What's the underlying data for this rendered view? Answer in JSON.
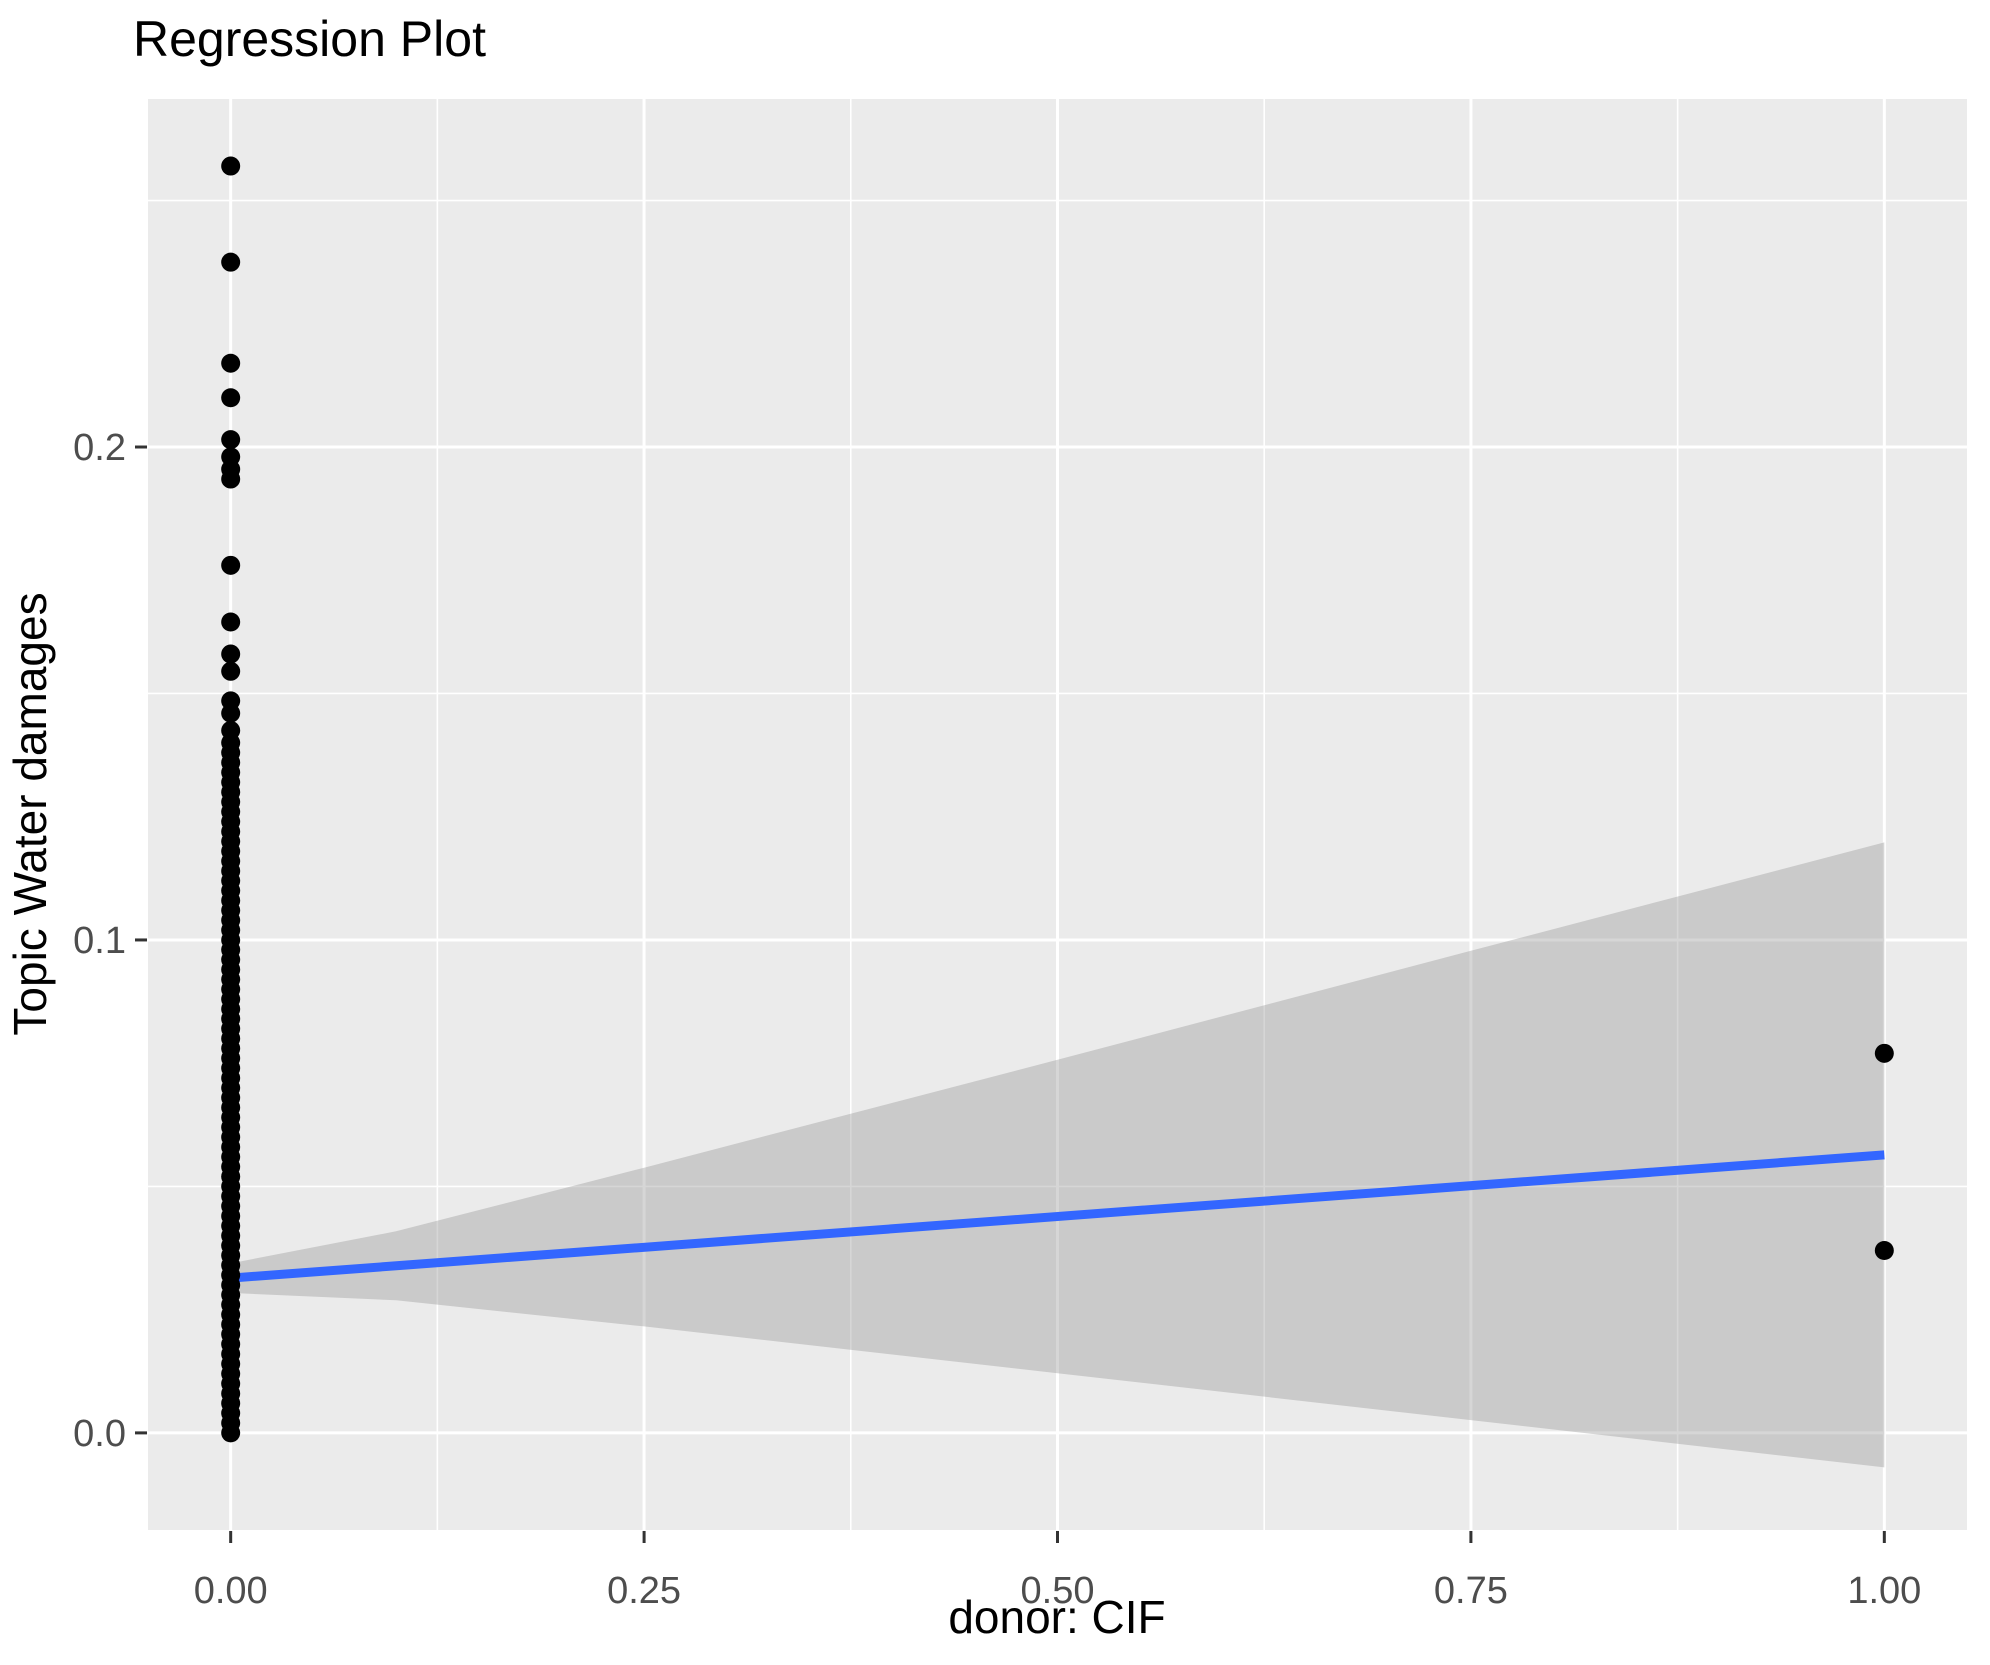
{
  "chart_data": {
    "type": "scatter",
    "title": "Regression Plot",
    "xlabel": "donor: CIF",
    "ylabel": "Topic Water damages",
    "xlim": [
      -0.05,
      1.05
    ],
    "ylim": [
      -0.0197,
      0.2706
    ],
    "grid": "major and minor white gridlines on grey panel",
    "legend": "none",
    "x_axis": {
      "tick_values": [
        0,
        0.25,
        0.5,
        0.75,
        1.0
      ],
      "tick_labels": [
        "0.00",
        "0.25",
        "0.50",
        "0.75",
        "1.00"
      ],
      "minor_tick_values": [
        0.125,
        0.375,
        0.625,
        0.875
      ]
    },
    "y_axis": {
      "tick_values": [
        0,
        0.1,
        0.2
      ],
      "tick_labels": [
        "0.0",
        "0.1",
        "0.2"
      ],
      "minor_tick_values": [
        0.05,
        0.15,
        0.25
      ]
    },
    "scatter_groups": [
      {
        "x": 0,
        "y_values": [
          0.257,
          0.2375,
          0.217,
          0.21,
          0.2015,
          0.198,
          0.1955,
          0.1935,
          0.176,
          0.1645,
          0.158,
          0.1545,
          0.1485,
          0.146,
          0.1425,
          0.14,
          0.138,
          0.136,
          0.134,
          0.132,
          0.13,
          0.128,
          0.126,
          0.124,
          0.122,
          0.12,
          0.118,
          0.116,
          0.114,
          0.112,
          0.11,
          0.108,
          0.106,
          0.104,
          0.102,
          0.1,
          0.098,
          0.096,
          0.094,
          0.092,
          0.09,
          0.088,
          0.086,
          0.084,
          0.082,
          0.08,
          0.078,
          0.076,
          0.074,
          0.072,
          0.07,
          0.068,
          0.066,
          0.064,
          0.062,
          0.06,
          0.058,
          0.056,
          0.054,
          0.052,
          0.05,
          0.048,
          0.046,
          0.044,
          0.042,
          0.04,
          0.038,
          0.036,
          0.034,
          0.032,
          0.03,
          0.028,
          0.026,
          0.024,
          0.022,
          0.02,
          0.018,
          0.016,
          0.014,
          0.012,
          0.01,
          0.008,
          0.006,
          0.004,
          0.002,
          0.0
        ]
      },
      {
        "x": 1,
        "y_values": [
          0.077,
          0.037
        ]
      }
    ],
    "regression_line": {
      "x": [
        0,
        1
      ],
      "y": [
        0.0314,
        0.0564
      ]
    },
    "confidence_band": {
      "x": [
        0,
        0.1,
        0.25,
        0.5,
        0.75,
        1.0
      ],
      "upper": [
        0.0344,
        0.0409,
        0.0538,
        0.0757,
        0.0978,
        0.1198
      ],
      "lower": [
        0.0284,
        0.0269,
        0.0216,
        0.0121,
        0.0026,
        -0.007
      ]
    },
    "colors": {
      "panel_background": "#EBEBEB",
      "gridline": "#FFFFFF",
      "confidence_band": "#999999",
      "confidence_band_opacity": 0.4,
      "regression_line": "#3366FF",
      "point": "#000000",
      "tick_label": "#4D4D4D",
      "tick_mark": "#333333",
      "title_text": "#000000"
    }
  }
}
